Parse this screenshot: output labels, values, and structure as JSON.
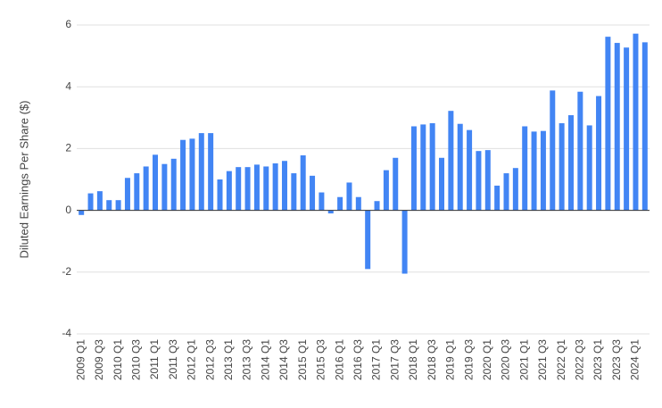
{
  "chart_data": {
    "type": "bar",
    "y_label": "Diluted Earnings Per Share ($)",
    "categories": [
      "2009 Q1",
      null,
      "2009 Q3",
      null,
      "2010 Q1",
      null,
      "2010 Q3",
      null,
      "2011 Q1",
      null,
      "2011 Q3",
      null,
      "2012 Q1",
      null,
      "2012 Q3",
      null,
      "2013 Q1",
      null,
      "2013 Q3",
      null,
      "2014 Q1",
      null,
      "2014 Q3",
      null,
      "2015 Q1",
      null,
      "2015 Q3",
      null,
      "2016 Q1",
      null,
      "2016 Q3",
      null,
      "2017 Q1",
      null,
      "2017 Q3",
      null,
      "2018 Q1",
      null,
      "2018 Q3",
      null,
      "2019 Q1",
      null,
      "2019 Q3",
      null,
      "2020 Q1",
      null,
      "2020 Q3",
      null,
      "2021 Q1",
      null,
      "2021 Q3",
      null,
      "2022 Q1",
      null,
      "2022 Q3",
      null,
      "2023 Q1",
      null,
      "2023 Q3",
      null,
      "2024 Q1",
      null
    ],
    "values": [
      -0.15,
      0.55,
      0.62,
      0.33,
      0.33,
      1.05,
      1.2,
      1.42,
      1.8,
      1.5,
      1.67,
      2.28,
      2.32,
      2.5,
      2.5,
      1.0,
      1.27,
      1.4,
      1.4,
      1.48,
      1.42,
      1.52,
      1.6,
      1.2,
      1.78,
      1.12,
      0.58,
      -0.1,
      0.43,
      0.9,
      0.43,
      -1.9,
      0.3,
      1.3,
      1.7,
      -2.05,
      2.72,
      2.78,
      2.82,
      1.7,
      3.22,
      2.8,
      2.6,
      1.92,
      1.95,
      0.8,
      1.2,
      1.37,
      2.72,
      2.55,
      2.57,
      3.88,
      2.82,
      3.08,
      3.84,
      2.75,
      3.7,
      5.62,
      5.42,
      5.27,
      5.72,
      5.44
    ],
    "color": "#4285f4",
    "ylim": [
      -4,
      6
    ],
    "yticks": [
      -4,
      -2,
      0,
      2,
      4,
      6
    ],
    "grid": true
  }
}
